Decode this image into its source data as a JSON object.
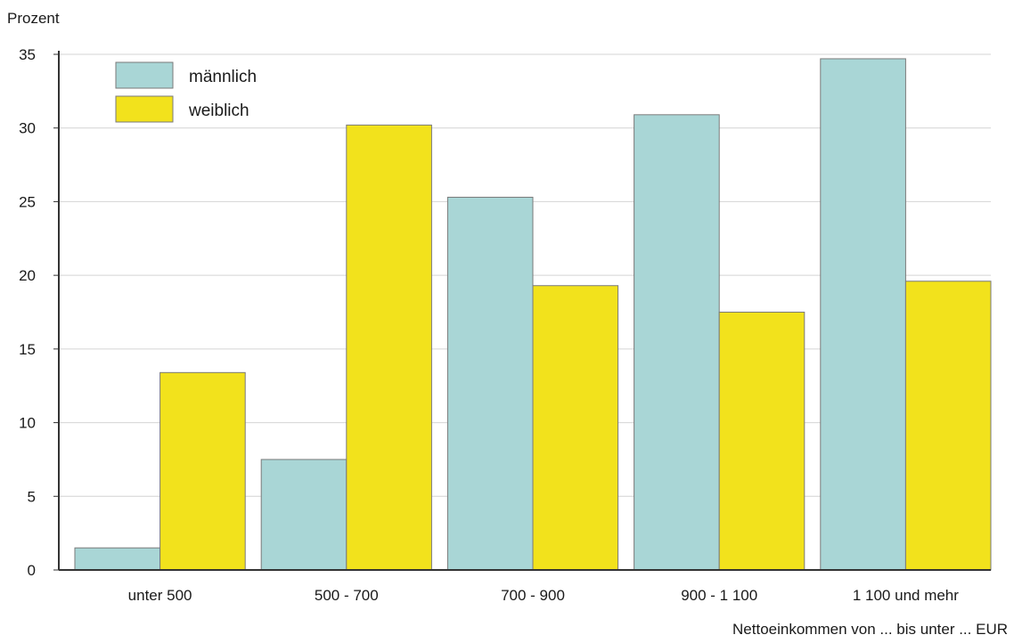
{
  "chart_data": {
    "type": "bar",
    "ylabel": "Prozent",
    "xlabel": "Nettoeinkommen von ... bis unter ... EUR",
    "categories": [
      "unter 500",
      "500 - 700",
      "700 - 900",
      "900 - 1 100",
      "1 100 und mehr"
    ],
    "series": [
      {
        "name": "männlich",
        "color": "#a9d6d6",
        "values": [
          1.5,
          7.5,
          25.3,
          30.9,
          34.7
        ]
      },
      {
        "name": "weiblich",
        "color": "#f2e21c",
        "values": [
          13.4,
          30.2,
          19.3,
          17.5,
          19.6
        ]
      }
    ],
    "ylim": [
      0,
      35
    ],
    "yticks": [
      "0",
      "5",
      "10",
      "15",
      "20",
      "25",
      "30",
      "35"
    ],
    "grid": true,
    "legend_position": "top-left"
  }
}
